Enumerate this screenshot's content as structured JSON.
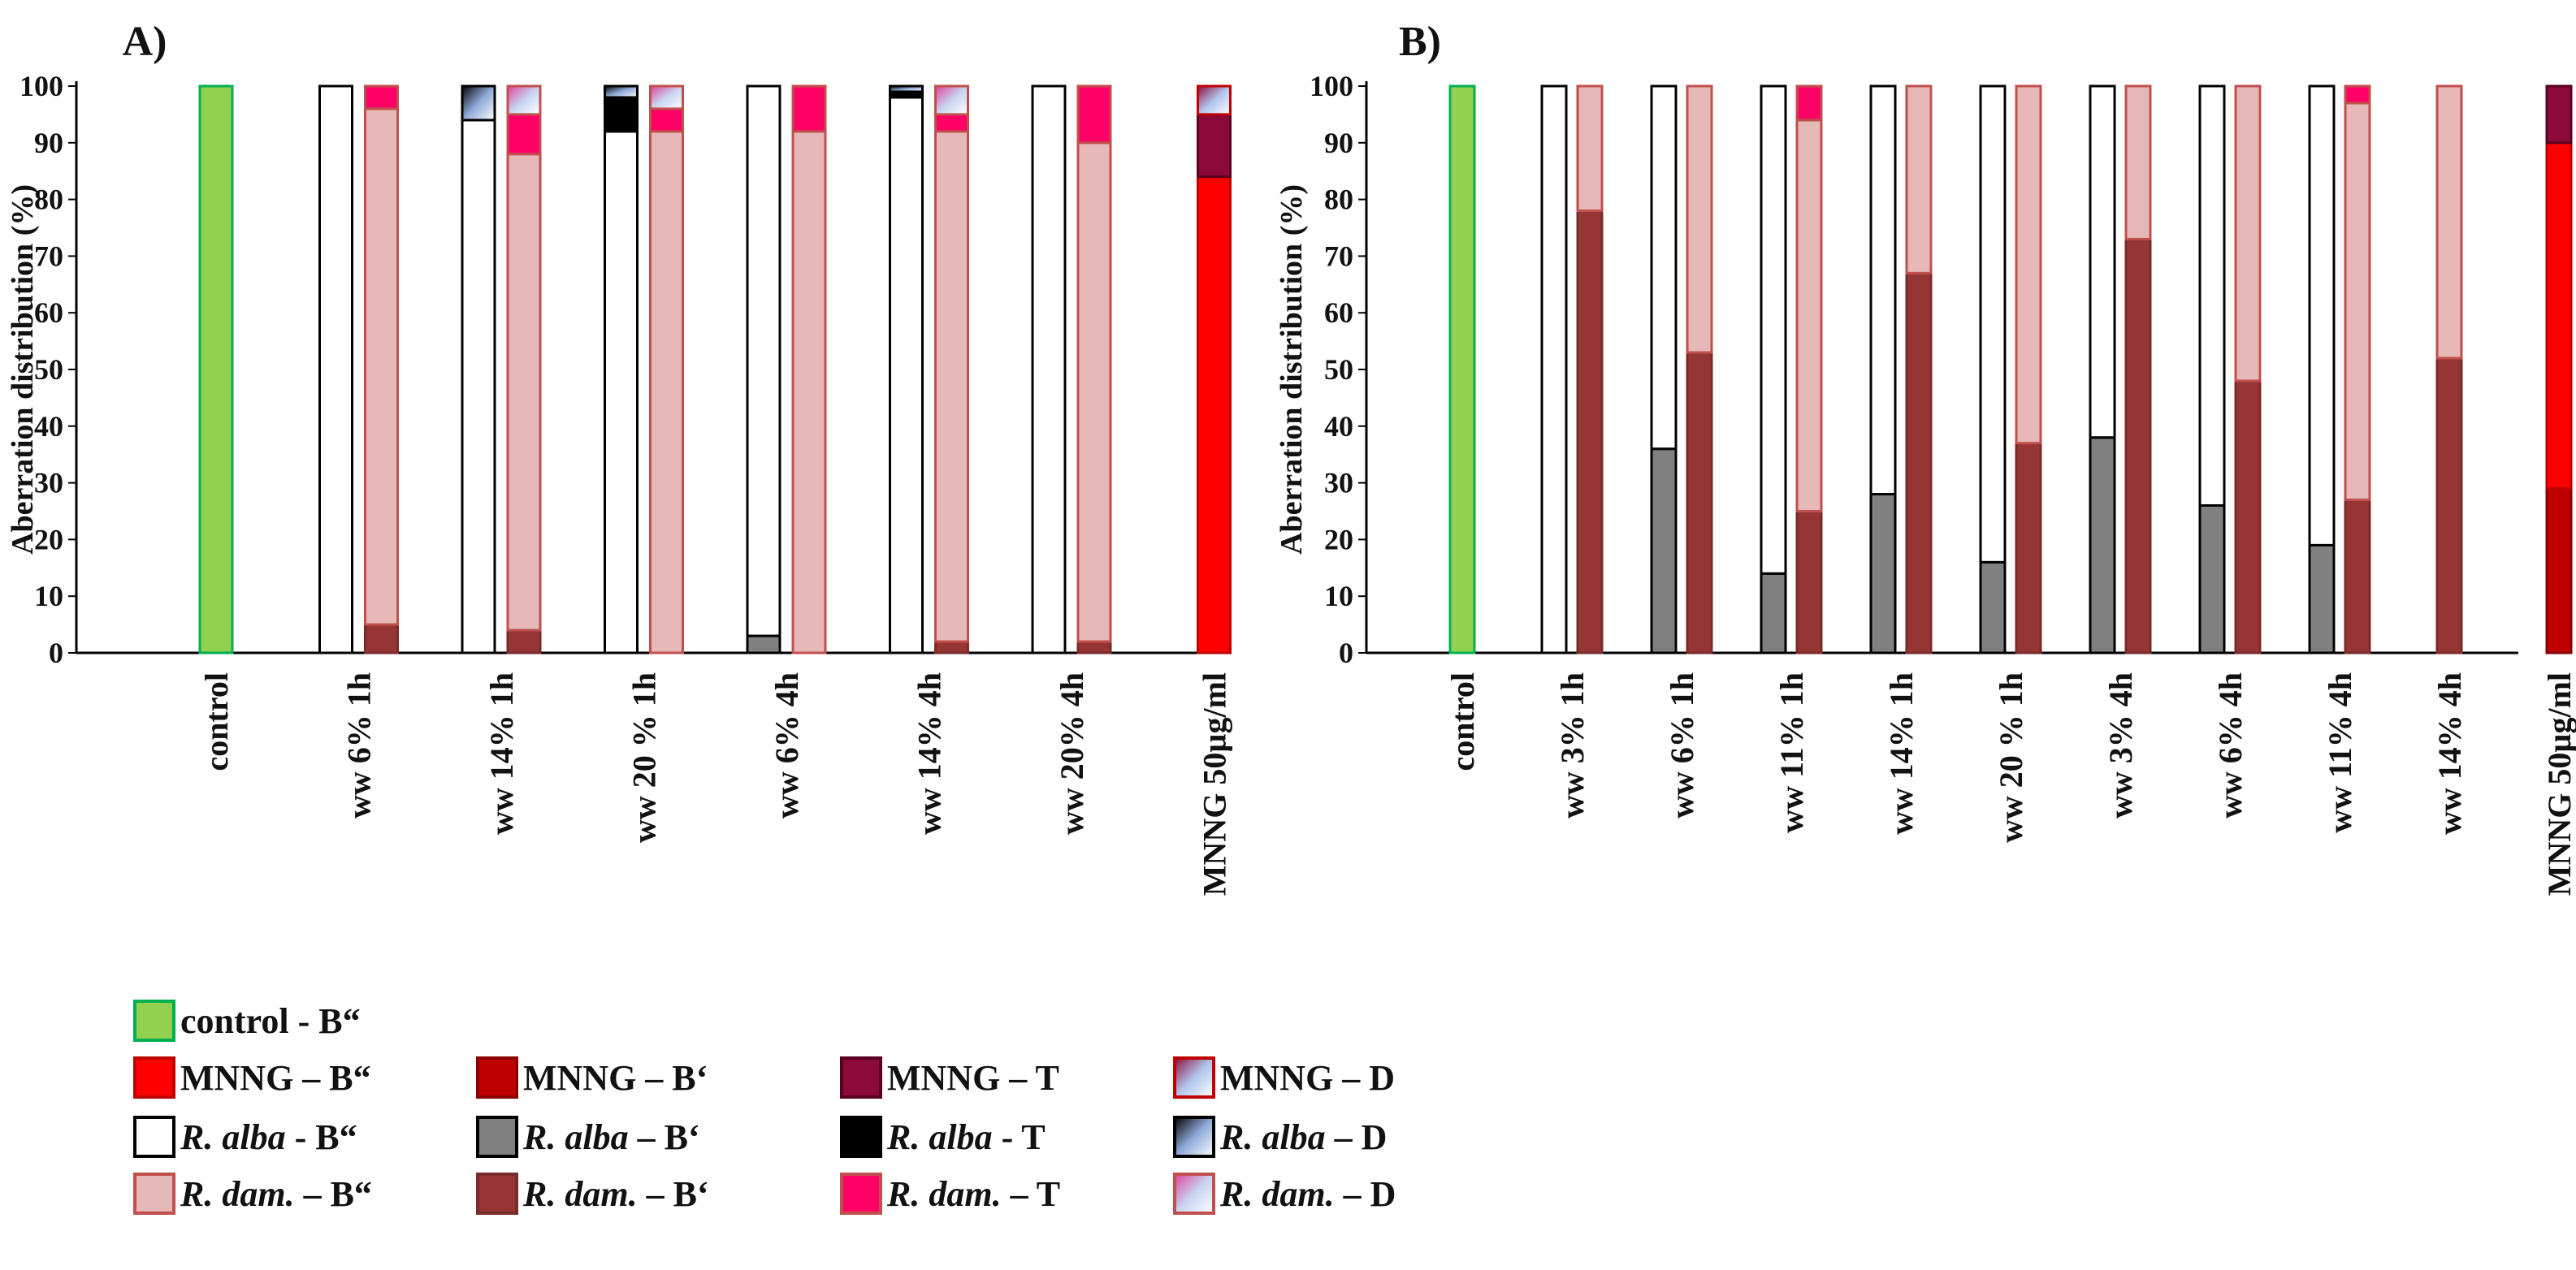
{
  "chart_data": [
    {
      "type": "bar",
      "stacked": true,
      "panel_label": "A)",
      "ylabel": "Aberration distribution (%)",
      "ylim": [
        0,
        100
      ],
      "yticks": [
        "0",
        "10",
        "20",
        "30",
        "40",
        "50",
        "60",
        "70",
        "80",
        "90",
        "100"
      ],
      "groups": [
        {
          "label": "control",
          "bars": [
            {
              "org": "control",
              "segments": [
                {
                  "type": "B''",
                  "value": 100
                }
              ]
            }
          ]
        },
        {
          "label": "ww 6% 1h",
          "bars": [
            {
              "org": "alba",
              "segments": [
                {
                  "type": "B''",
                  "value": 100
                }
              ]
            },
            {
              "org": "dam",
              "segments": [
                {
                  "type": "B'",
                  "value": 5
                },
                {
                  "type": "B''",
                  "value": 91
                },
                {
                  "type": "T",
                  "value": 4
                }
              ]
            }
          ]
        },
        {
          "label": "ww 14% 1h",
          "bars": [
            {
              "org": "alba",
              "segments": [
                {
                  "type": "B''",
                  "value": 94
                },
                {
                  "type": "D",
                  "value": 6
                }
              ]
            },
            {
              "org": "dam",
              "segments": [
                {
                  "type": "B'",
                  "value": 4
                },
                {
                  "type": "B''",
                  "value": 84
                },
                {
                  "type": "T",
                  "value": 7
                },
                {
                  "type": "D",
                  "value": 5
                }
              ]
            }
          ]
        },
        {
          "label": "ww 20 % 1h",
          "bars": [
            {
              "org": "alba",
              "segments": [
                {
                  "type": "B''",
                  "value": 92
                },
                {
                  "type": "T",
                  "value": 6
                },
                {
                  "type": "D",
                  "value": 2
                }
              ]
            },
            {
              "org": "dam",
              "segments": [
                {
                  "type": "B''",
                  "value": 92
                },
                {
                  "type": "T",
                  "value": 4
                },
                {
                  "type": "D",
                  "value": 4
                }
              ]
            }
          ]
        },
        {
          "label": "ww 6% 4h",
          "bars": [
            {
              "org": "alba",
              "segments": [
                {
                  "type": "B'",
                  "value": 3
                },
                {
                  "type": "B''",
                  "value": 97
                }
              ]
            },
            {
              "org": "dam",
              "segments": [
                {
                  "type": "B''",
                  "value": 92
                },
                {
                  "type": "T",
                  "value": 8
                }
              ]
            }
          ]
        },
        {
          "label": "ww 14% 4h",
          "bars": [
            {
              "org": "alba",
              "segments": [
                {
                  "type": "B''",
                  "value": 98
                },
                {
                  "type": "T",
                  "value": 1
                },
                {
                  "type": "D",
                  "value": 1
                }
              ]
            },
            {
              "org": "dam",
              "segments": [
                {
                  "type": "B'",
                  "value": 2
                },
                {
                  "type": "B''",
                  "value": 90
                },
                {
                  "type": "T",
                  "value": 3
                },
                {
                  "type": "D",
                  "value": 5
                }
              ]
            }
          ]
        },
        {
          "label": "ww 20% 4h",
          "bars": [
            {
              "org": "alba",
              "segments": [
                {
                  "type": "B''",
                  "value": 100
                }
              ]
            },
            {
              "org": "dam",
              "segments": [
                {
                  "type": "B'",
                  "value": 2
                },
                {
                  "type": "B''",
                  "value": 88
                },
                {
                  "type": "T",
                  "value": 10
                }
              ]
            }
          ]
        },
        {
          "label": "MNNG 50µg/ml",
          "bars": [
            {
              "org": "mnng",
              "segments": [
                {
                  "type": "B''",
                  "value": 84
                },
                {
                  "type": "T",
                  "value": 11
                },
                {
                  "type": "D",
                  "value": 5
                }
              ]
            }
          ]
        }
      ]
    },
    {
      "type": "bar",
      "stacked": true,
      "panel_label": "B)",
      "ylabel": "Aberration distribution (%)",
      "ylim": [
        0,
        100
      ],
      "yticks": [
        "0",
        "10",
        "20",
        "30",
        "40",
        "50",
        "60",
        "70",
        "80",
        "90",
        "100"
      ],
      "groups": [
        {
          "label": "control",
          "bars": [
            {
              "org": "control",
              "segments": [
                {
                  "type": "B''",
                  "value": 100
                }
              ]
            }
          ]
        },
        {
          "label": "ww 3% 1h",
          "bars": [
            {
              "org": "alba",
              "segments": [
                {
                  "type": "B''",
                  "value": 100
                }
              ]
            },
            {
              "org": "dam",
              "segments": [
                {
                  "type": "B'",
                  "value": 78
                },
                {
                  "type": "B''",
                  "value": 22
                }
              ]
            }
          ]
        },
        {
          "label": "ww 6% 1h",
          "bars": [
            {
              "org": "alba",
              "segments": [
                {
                  "type": "B'",
                  "value": 36
                },
                {
                  "type": "B''",
                  "value": 64
                }
              ]
            },
            {
              "org": "dam",
              "segments": [
                {
                  "type": "B'",
                  "value": 53
                },
                {
                  "type": "B''",
                  "value": 47
                }
              ]
            }
          ]
        },
        {
          "label": "ww 11% 1h",
          "bars": [
            {
              "org": "alba",
              "segments": [
                {
                  "type": "B'",
                  "value": 14
                },
                {
                  "type": "B''",
                  "value": 86
                }
              ]
            },
            {
              "org": "dam",
              "segments": [
                {
                  "type": "B'",
                  "value": 25
                },
                {
                  "type": "B''",
                  "value": 69
                },
                {
                  "type": "T",
                  "value": 6
                }
              ]
            }
          ]
        },
        {
          "label": "ww 14% 1h",
          "bars": [
            {
              "org": "alba",
              "segments": [
                {
                  "type": "B'",
                  "value": 28
                },
                {
                  "type": "B''",
                  "value": 72
                }
              ]
            },
            {
              "org": "dam",
              "segments": [
                {
                  "type": "B'",
                  "value": 67
                },
                {
                  "type": "B''",
                  "value": 33
                }
              ]
            }
          ]
        },
        {
          "label": "ww 20 % 1h",
          "bars": [
            {
              "org": "alba",
              "segments": [
                {
                  "type": "B'",
                  "value": 16
                },
                {
                  "type": "B''",
                  "value": 84
                }
              ]
            },
            {
              "org": "dam",
              "segments": [
                {
                  "type": "B'",
                  "value": 37
                },
                {
                  "type": "B''",
                  "value": 63
                }
              ]
            }
          ]
        },
        {
          "label": "ww 3% 4h",
          "bars": [
            {
              "org": "alba",
              "segments": [
                {
                  "type": "B'",
                  "value": 38
                },
                {
                  "type": "B''",
                  "value": 62
                }
              ]
            },
            {
              "org": "dam",
              "segments": [
                {
                  "type": "B'",
                  "value": 73
                },
                {
                  "type": "B''",
                  "value": 27
                }
              ]
            }
          ]
        },
        {
          "label": "ww 6% 4h",
          "bars": [
            {
              "org": "alba",
              "segments": [
                {
                  "type": "B'",
                  "value": 26
                },
                {
                  "type": "B''",
                  "value": 74
                }
              ]
            },
            {
              "org": "dam",
              "segments": [
                {
                  "type": "B'",
                  "value": 48
                },
                {
                  "type": "B''",
                  "value": 52
                }
              ]
            }
          ]
        },
        {
          "label": "ww 11% 4h",
          "bars": [
            {
              "org": "alba",
              "segments": [
                {
                  "type": "B'",
                  "value": 19
                },
                {
                  "type": "B''",
                  "value": 81
                }
              ]
            },
            {
              "org": "dam",
              "segments": [
                {
                  "type": "B'",
                  "value": 27
                },
                {
                  "type": "B''",
                  "value": 70
                },
                {
                  "type": "T",
                  "value": 3
                }
              ]
            }
          ]
        },
        {
          "label": "ww 14% 4h",
          "bars": [
            {
              "org": "dam",
              "segments": [
                {
                  "type": "B'",
                  "value": 52
                },
                {
                  "type": "B''",
                  "value": 48
                }
              ]
            }
          ]
        },
        {
          "label": "MNNG 50µg/ml",
          "bars": [
            {
              "org": "mnng",
              "segments": [
                {
                  "type": "B'",
                  "value": 29
                },
                {
                  "type": "B''",
                  "value": 61
                },
                {
                  "type": "T",
                  "value": 10
                }
              ]
            }
          ]
        }
      ]
    }
  ],
  "styles": {
    "control|B''": {
      "fill": "#92d050",
      "stroke": "#00b050"
    },
    "mnng|B''": {
      "fill": "#ff0000",
      "stroke": "#c00000"
    },
    "mnng|B'": {
      "fill": "#c00000",
      "stroke": "#8b0000"
    },
    "mnng|T": {
      "fill": "#8b0a3a",
      "stroke": "#5a0020"
    },
    "mnng|D": {
      "gradient": "gradMnngD",
      "stroke": "#c00000"
    },
    "alba|B''": {
      "fill": "#ffffff",
      "stroke": "#000000"
    },
    "alba|B'": {
      "fill": "#808080",
      "stroke": "#000000"
    },
    "alba|T": {
      "fill": "#000000",
      "stroke": "#000000"
    },
    "alba|D": {
      "gradient": "gradAlbaD",
      "stroke": "#000000"
    },
    "dam|B''": {
      "fill": "#e6b8b7",
      "stroke": "#c0504d"
    },
    "dam|B'": {
      "fill": "#963634",
      "stroke": "#7a2a28"
    },
    "dam|T": {
      "fill": "#ff0066",
      "stroke": "#c0504d"
    },
    "dam|D": {
      "gradient": "gradDamD",
      "stroke": "#c0504d"
    }
  },
  "legend": [
    {
      "key": "control|B''",
      "plain": "control - B“",
      "italic": ""
    },
    {
      "key": "mnng|B''",
      "plain": "MNNG – B“",
      "italic": ""
    },
    {
      "key": "mnng|B'",
      "plain": "MNNG – B‘",
      "italic": ""
    },
    {
      "key": "mnng|T",
      "plain": "MNNG – T",
      "italic": ""
    },
    {
      "key": "mnng|D",
      "plain": "MNNG – D",
      "italic": ""
    },
    {
      "key": "alba|B''",
      "italic": "R. alba",
      "plain": " - B“"
    },
    {
      "key": "alba|B'",
      "italic": "R. alba",
      "plain": " – B‘"
    },
    {
      "key": "alba|T",
      "italic": "R. alba",
      "plain": " - T"
    },
    {
      "key": "alba|D",
      "italic": "R. alba",
      "plain": " – D"
    },
    {
      "key": "dam|B''",
      "italic": "R. dam.",
      "plain": " – B“"
    },
    {
      "key": "dam|B'",
      "italic": "R. dam.",
      "plain": " – B‘"
    },
    {
      "key": "dam|T",
      "italic": "R. dam.",
      "plain": " – T"
    },
    {
      "key": "dam|D",
      "italic": "R. dam.",
      "plain": " – D"
    }
  ]
}
